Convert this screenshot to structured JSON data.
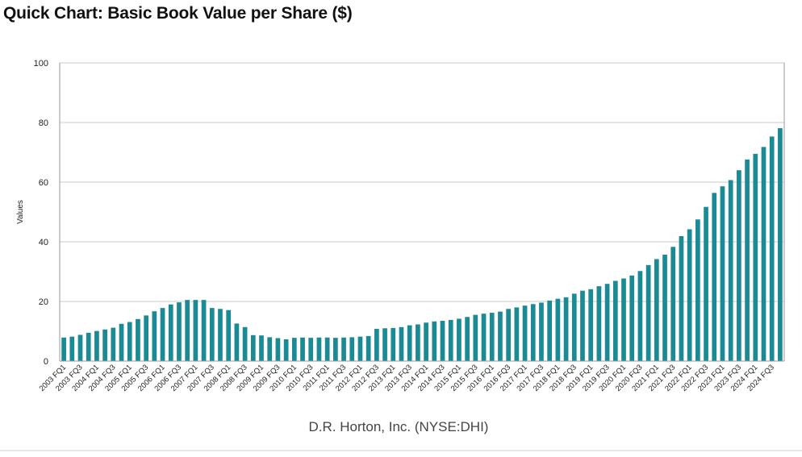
{
  "title": "Quick Chart: Basic Book Value per Share ($)",
  "colors": {
    "bar": "#1a8a94",
    "grid": "#c8c8c8",
    "axis": "#999999"
  },
  "chart_data": {
    "type": "bar",
    "title": "Quick Chart: Basic Book Value per Share ($)",
    "ylabel": "Values",
    "xlabel": "",
    "caption": "D.R. Horton, Inc. (NYSE:DHI)",
    "ylim": [
      0,
      100
    ],
    "yticks": [
      0,
      20,
      40,
      60,
      80,
      100
    ],
    "grid": true,
    "tick_labels": [
      "2003 FQ1",
      "2003 FQ3",
      "2004 FQ1",
      "2004 FQ3",
      "2005 FQ1",
      "2005 FQ3",
      "2006 FQ1",
      "2006 FQ3",
      "2007 FQ1",
      "2007 FQ3",
      "2008 FQ1",
      "2008 FQ3",
      "2009 FQ1",
      "2009 FQ3",
      "2010 FQ1",
      "2010 FQ3",
      "2011 FQ1",
      "2011 FQ3",
      "2012 FQ1",
      "2012 FQ3",
      "2013 FQ1",
      "2013 FQ3",
      "2014 FQ1",
      "2014 FQ3",
      "2015 FQ1",
      "2015 FQ3",
      "2016 FQ1",
      "2016 FQ3",
      "2017 FQ1",
      "2017 FQ3",
      "2018 FQ1",
      "2018 FQ3",
      "2019 FQ1",
      "2019 FQ3",
      "2020 FQ1",
      "2020 FQ3",
      "2021 FQ1",
      "2021 FQ3",
      "2022 FQ1",
      "2022 FQ3",
      "2023 FQ1",
      "2023 FQ3",
      "2024 FQ1",
      "2024 FQ3"
    ],
    "categories": [
      "2003 FQ1",
      "2003 FQ2",
      "2003 FQ3",
      "2003 FQ4",
      "2004 FQ1",
      "2004 FQ2",
      "2004 FQ3",
      "2004 FQ4",
      "2005 FQ1",
      "2005 FQ2",
      "2005 FQ3",
      "2005 FQ4",
      "2006 FQ1",
      "2006 FQ2",
      "2006 FQ3",
      "2006 FQ4",
      "2007 FQ1",
      "2007 FQ2",
      "2007 FQ3",
      "2007 FQ4",
      "2008 FQ1",
      "2008 FQ2",
      "2008 FQ3",
      "2008 FQ4",
      "2009 FQ1",
      "2009 FQ2",
      "2009 FQ3",
      "2009 FQ4",
      "2010 FQ1",
      "2010 FQ2",
      "2010 FQ3",
      "2010 FQ4",
      "2011 FQ1",
      "2011 FQ2",
      "2011 FQ3",
      "2011 FQ4",
      "2012 FQ1",
      "2012 FQ2",
      "2012 FQ3",
      "2012 FQ4",
      "2013 FQ1",
      "2013 FQ2",
      "2013 FQ3",
      "2013 FQ4",
      "2014 FQ1",
      "2014 FQ2",
      "2014 FQ3",
      "2014 FQ4",
      "2015 FQ1",
      "2015 FQ2",
      "2015 FQ3",
      "2015 FQ4",
      "2016 FQ1",
      "2016 FQ2",
      "2016 FQ3",
      "2016 FQ4",
      "2017 FQ1",
      "2017 FQ2",
      "2017 FQ3",
      "2017 FQ4",
      "2018 FQ1",
      "2018 FQ2",
      "2018 FQ3",
      "2018 FQ4",
      "2019 FQ1",
      "2019 FQ2",
      "2019 FQ3",
      "2019 FQ4",
      "2020 FQ1",
      "2020 FQ2",
      "2020 FQ3",
      "2020 FQ4",
      "2021 FQ1",
      "2021 FQ2",
      "2021 FQ3",
      "2021 FQ4",
      "2022 FQ1",
      "2022 FQ2",
      "2022 FQ3",
      "2022 FQ4",
      "2023 FQ1",
      "2023 FQ2",
      "2023 FQ3",
      "2023 FQ4",
      "2024 FQ1",
      "2024 FQ2",
      "2024 FQ3",
      "2024 FQ4"
    ],
    "values": [
      7.9,
      8.2,
      8.8,
      9.5,
      10.1,
      10.6,
      11.2,
      12.5,
      13.1,
      14.1,
      15.3,
      16.7,
      17.8,
      19.0,
      19.7,
      20.5,
      20.5,
      20.5,
      17.8,
      17.5,
      17.1,
      12.6,
      11.4,
      8.7,
      8.6,
      8.0,
      7.7,
      7.3,
      7.8,
      7.9,
      7.8,
      7.9,
      7.9,
      7.8,
      7.9,
      8.0,
      8.2,
      8.4,
      10.8,
      11.0,
      11.1,
      11.4,
      12.0,
      12.3,
      12.9,
      13.3,
      13.5,
      13.8,
      14.2,
      14.8,
      15.5,
      15.9,
      16.2,
      16.6,
      17.5,
      18.0,
      18.6,
      19.1,
      19.6,
      20.3,
      20.9,
      21.4,
      22.6,
      23.6,
      24.1,
      25.1,
      25.9,
      26.9,
      27.7,
      28.7,
      30.2,
      32.2,
      34.2,
      35.7,
      38.3,
      41.9,
      44.2,
      47.5,
      51.7,
      56.4,
      58.6,
      60.7,
      64.0,
      67.6,
      69.5,
      71.8,
      75.3,
      78.1
    ]
  }
}
